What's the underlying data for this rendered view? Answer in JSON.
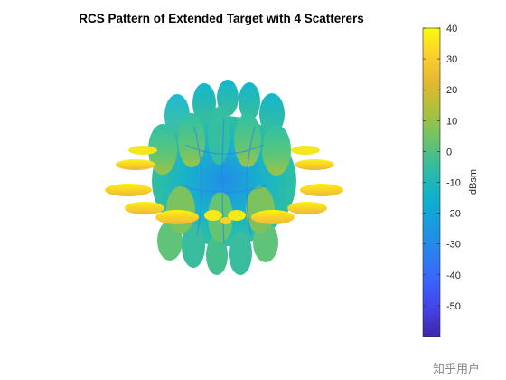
{
  "chart_data": {
    "type": "surface3d",
    "title": "RCS Pattern of Extended Target with 4 Scatterers",
    "colorbar": {
      "label": "dBsm",
      "min": -60,
      "max": 40,
      "ticks": [
        40,
        30,
        20,
        10,
        0,
        -10,
        -20,
        -30,
        -40,
        -50
      ],
      "colormap": "parula",
      "placement": "right"
    },
    "grid": false,
    "axes_visible": false,
    "colors": {
      "low": "#3e26a8",
      "mid": "#12bec5",
      "high": "#f9fb0e"
    }
  },
  "watermark": "知乎用户"
}
